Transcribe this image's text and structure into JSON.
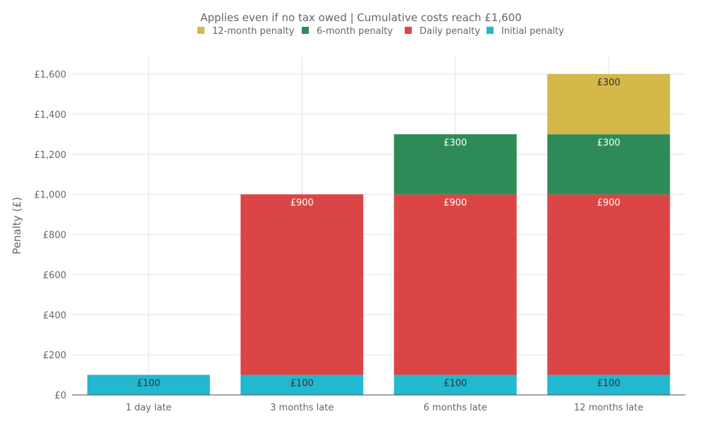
{
  "chart_data": {
    "type": "bar",
    "stacked": true,
    "subtitle": "Applies even if no tax owed | Cumulative costs reach £1,600",
    "ylabel": "Penalty (£)",
    "xlabel": "",
    "ylim": [
      0,
      1600
    ],
    "yticks": [
      0,
      200,
      400,
      600,
      800,
      1000,
      1200,
      1400,
      1600
    ],
    "ytick_labels": [
      "£0",
      "£200",
      "£400",
      "£600",
      "£800",
      "£1,000",
      "£1,200",
      "£1,400",
      "£1,600"
    ],
    "categories": [
      "1 day late",
      "3 months late",
      "6 months late",
      "12 months late"
    ],
    "grid": true,
    "legend_position": "top",
    "series": [
      {
        "name": "Initial penalty",
        "color": "#22b8cf",
        "label_color": "#333333",
        "values": [
          100,
          100,
          100,
          100
        ],
        "labels": [
          "£100",
          "£100",
          "£100",
          "£100"
        ]
      },
      {
        "name": "Daily penalty",
        "color": "#dc4545",
        "label_color": "#ffffff",
        "values": [
          0,
          900,
          900,
          900
        ],
        "labels": [
          "",
          "£900",
          "£900",
          "£900"
        ]
      },
      {
        "name": "6-month penalty",
        "color": "#2e8b57",
        "label_color": "#ffffff",
        "values": [
          0,
          0,
          300,
          300
        ],
        "labels": [
          "",
          "",
          "£300",
          "£300"
        ]
      },
      {
        "name": "12-month penalty",
        "color": "#d4b84a",
        "label_color": "#333333",
        "values": [
          0,
          0,
          0,
          300
        ],
        "labels": [
          "",
          "",
          "",
          "£300"
        ]
      }
    ],
    "legend_order": [
      3,
      2,
      1,
      0
    ]
  }
}
